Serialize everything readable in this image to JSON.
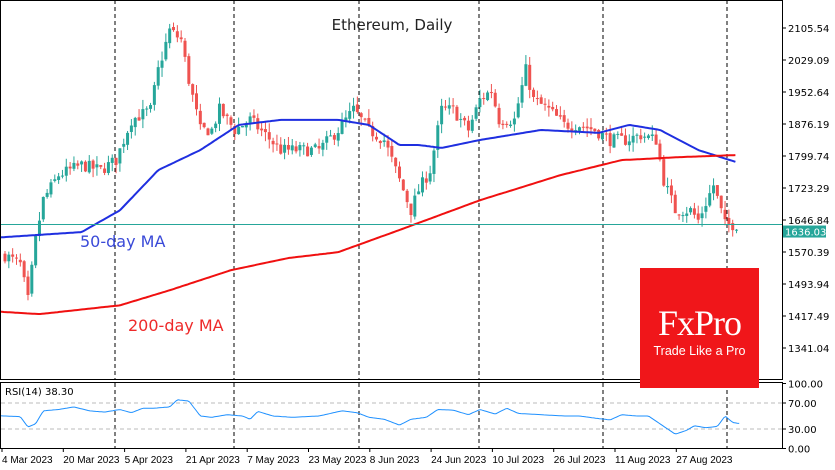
{
  "chart_data": {
    "type": "candlestick",
    "title": "Ethereum, Daily",
    "start_date": "4 Mar 2023",
    "ylim": [
      1290,
      2170
    ],
    "y_ticks": [
      "2105.54",
      "2029.09",
      "1952.64",
      "1876.19",
      "1799.74",
      "1723.29",
      "1646.84",
      "1570.39",
      "1493.94",
      "1417.49",
      "1341.04"
    ],
    "x_ticks": [
      "4 Mar 2023",
      "20 Mar 2023",
      "5 Apr 2023",
      "21 Apr 2023",
      "7 May 2023",
      "23 May 2023",
      "8 Jun 2023",
      "24 Jun 2023",
      "10 Jul 2023",
      "26 Jul 2023",
      "11 Aug 2023",
      "27 Aug 2023"
    ],
    "last_price": "1636.03",
    "colors": {
      "up": "#26a69a",
      "down": "#ef5350",
      "ma50": "#1f2fe0",
      "ma200": "#f01010",
      "rsi": "#1e90ff",
      "price_line": "#26a69a"
    },
    "close_keypoints_day_price": [
      [
        0,
        1563
      ],
      [
        4,
        1540
      ],
      [
        6,
        1455
      ],
      [
        8,
        1600
      ],
      [
        10,
        1695
      ],
      [
        14,
        1754
      ],
      [
        20,
        1778
      ],
      [
        25,
        1766
      ],
      [
        29,
        1790
      ],
      [
        33,
        1886
      ],
      [
        38,
        1910
      ],
      [
        40,
        2005
      ],
      [
        43,
        2100
      ],
      [
        46,
        2077
      ],
      [
        48,
        1981
      ],
      [
        51,
        1862
      ],
      [
        54,
        1862
      ],
      [
        56,
        1910
      ],
      [
        60,
        1862
      ],
      [
        64,
        1886
      ],
      [
        68,
        1850
      ],
      [
        72,
        1814
      ],
      [
        77,
        1814
      ],
      [
        82,
        1814
      ],
      [
        87,
        1862
      ],
      [
        91,
        1910
      ],
      [
        95,
        1862
      ],
      [
        99,
        1838
      ],
      [
        103,
        1742
      ],
      [
        106,
        1670
      ],
      [
        108,
        1718
      ],
      [
        111,
        1766
      ],
      [
        114,
        1910
      ],
      [
        117,
        1910
      ],
      [
        121,
        1862
      ],
      [
        124,
        1934
      ],
      [
        127,
        1957
      ],
      [
        129,
        1886
      ],
      [
        133,
        1886
      ],
      [
        136,
        2005
      ],
      [
        138,
        1934
      ],
      [
        142,
        1910
      ],
      [
        146,
        1874
      ],
      [
        150,
        1874
      ],
      [
        154,
        1862
      ],
      [
        158,
        1838
      ],
      [
        162,
        1838
      ],
      [
        166,
        1850
      ],
      [
        170,
        1838
      ],
      [
        172,
        1742
      ],
      [
        175,
        1670
      ],
      [
        179,
        1670
      ],
      [
        181,
        1646
      ],
      [
        185,
        1730
      ],
      [
        188,
        1636
      ],
      [
        191,
        1636
      ]
    ],
    "ma50_keypoints_day_price": [
      [
        0,
        1606
      ],
      [
        20,
        1618
      ],
      [
        30,
        1670
      ],
      [
        40,
        1766
      ],
      [
        51,
        1814
      ],
      [
        61,
        1874
      ],
      [
        72,
        1886
      ],
      [
        87,
        1886
      ],
      [
        95,
        1874
      ],
      [
        103,
        1826
      ],
      [
        108,
        1826
      ],
      [
        114,
        1819
      ],
      [
        124,
        1838
      ],
      [
        140,
        1862
      ],
      [
        155,
        1855
      ],
      [
        163,
        1874
      ],
      [
        171,
        1862
      ],
      [
        181,
        1814
      ],
      [
        191,
        1785
      ]
    ],
    "ma200_keypoints_day_price": [
      [
        0,
        1427
      ],
      [
        9,
        1422
      ],
      [
        30,
        1443
      ],
      [
        43,
        1479
      ],
      [
        59,
        1527
      ],
      [
        74,
        1556
      ],
      [
        87,
        1570
      ],
      [
        103,
        1623
      ],
      [
        124,
        1694
      ],
      [
        145,
        1754
      ],
      [
        161,
        1790
      ],
      [
        176,
        1797
      ],
      [
        191,
        1802
      ]
    ],
    "annotations": {
      "ma50_label": "50-day MA",
      "ma200_label": "200-day MA"
    },
    "rsi": {
      "label": "RSI(14) 38.30",
      "y_ticks": [
        "100.00",
        "70.00",
        "30.00",
        "0.00"
      ],
      "levels": [
        70,
        30
      ],
      "keypoints_day_value": [
        [
          0,
          50
        ],
        [
          4,
          49
        ],
        [
          6,
          33
        ],
        [
          8,
          38
        ],
        [
          10,
          58
        ],
        [
          14,
          60
        ],
        [
          18,
          64
        ],
        [
          22,
          58
        ],
        [
          26,
          56
        ],
        [
          30,
          60
        ],
        [
          33,
          55
        ],
        [
          36,
          62
        ],
        [
          39,
          62
        ],
        [
          43,
          64
        ],
        [
          45,
          75
        ],
        [
          48,
          73
        ],
        [
          51,
          50
        ],
        [
          54,
          48
        ],
        [
          58,
          52
        ],
        [
          62,
          50
        ],
        [
          64,
          45
        ],
        [
          66,
          57
        ],
        [
          70,
          50
        ],
        [
          75,
          48
        ],
        [
          82,
          50
        ],
        [
          88,
          58
        ],
        [
          92,
          55
        ],
        [
          95,
          48
        ],
        [
          99,
          45
        ],
        [
          103,
          36
        ],
        [
          106,
          45
        ],
        [
          110,
          48
        ],
        [
          113,
          60
        ],
        [
          117,
          59
        ],
        [
          121,
          52
        ],
        [
          124,
          60
        ],
        [
          128,
          53
        ],
        [
          131,
          62
        ],
        [
          134,
          54
        ],
        [
          140,
          52
        ],
        [
          146,
          50
        ],
        [
          150,
          50
        ],
        [
          155,
          46
        ],
        [
          158,
          44
        ],
        [
          161,
          52
        ],
        [
          165,
          50
        ],
        [
          168,
          50
        ],
        [
          171,
          38
        ],
        [
          175,
          22
        ],
        [
          178,
          28
        ],
        [
          180,
          35
        ],
        [
          183,
          32
        ],
        [
          186,
          34
        ],
        [
          188,
          50
        ],
        [
          190,
          40
        ],
        [
          192,
          38.3
        ]
      ]
    }
  },
  "branding": {
    "name": "FxPro",
    "tagline": "Trade Like a Pro"
  }
}
